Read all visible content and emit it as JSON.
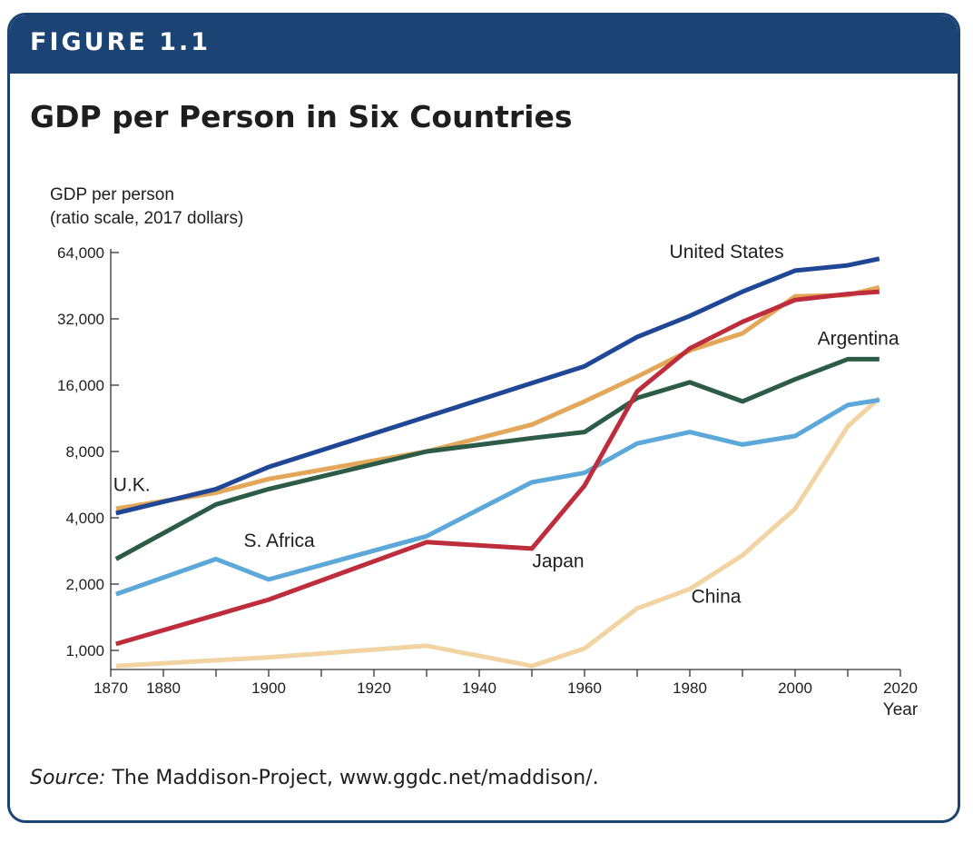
{
  "figure": {
    "label": "FIGURE 1.1",
    "title": "GDP per Person in Six Countries",
    "source_label": "Source:",
    "source_text": " The Maddison-Project, www.ggdc.net/maddison/."
  },
  "colors": {
    "header": "#1b4474",
    "United States": "#1f4796",
    "U.K.": "#e2a759",
    "Japan": "#be2d3c",
    "Argentina": "#2c5c45",
    "S. Africa": "#5ba8d9",
    "China": "#f2d3a2"
  },
  "chart_data": {
    "type": "line",
    "title": "GDP per Person in Six Countries",
    "ylabel_lines": [
      "GDP per person",
      "(ratio scale, 2017 dollars)"
    ],
    "xlabel": "Year",
    "y_scale": "log2",
    "ylim": [
      850,
      64000
    ],
    "xlim": [
      1870,
      2020
    ],
    "yticks": [
      1000,
      2000,
      4000,
      8000,
      16000,
      32000,
      64000
    ],
    "ytick_labels": [
      "1,000",
      "2,000",
      "4,000",
      "8,000",
      "16,000",
      "32,000",
      "64,000"
    ],
    "xticks": [
      1870,
      1880,
      1890,
      1900,
      1910,
      1920,
      1930,
      1940,
      1950,
      1960,
      1970,
      1980,
      1990,
      2000,
      2010,
      2020
    ],
    "xtick_labels": [
      "1870",
      "1880",
      "",
      "1900",
      "",
      "1920",
      "",
      "1940",
      "",
      "1960",
      "",
      "1980",
      "",
      "2000",
      "",
      "2020"
    ],
    "series": [
      {
        "name": "United States",
        "x": [
          1871,
          1890,
          1900,
          1930,
          1960,
          1970,
          1980,
          1990,
          2000,
          2010,
          2016
        ],
        "y": [
          4200,
          5400,
          6800,
          11500,
          19500,
          26500,
          33000,
          42500,
          53000,
          56000,
          60000
        ]
      },
      {
        "name": "U.K.",
        "x": [
          1871,
          1890,
          1900,
          1930,
          1950,
          1960,
          1970,
          1980,
          1990,
          2000,
          2010,
          2016
        ],
        "y": [
          4400,
          5200,
          6000,
          8000,
          10600,
          13500,
          17500,
          23000,
          27500,
          40500,
          41000,
          44500
        ]
      },
      {
        "name": "Argentina",
        "x": [
          1871,
          1890,
          1900,
          1930,
          1950,
          1960,
          1970,
          1980,
          1990,
          2000,
          2010,
          2016
        ],
        "y": [
          2600,
          4600,
          5400,
          8000,
          9200,
          9800,
          14000,
          16500,
          13500,
          17000,
          21000,
          21000
        ]
      },
      {
        "name": "S. Africa",
        "x": [
          1871,
          1890,
          1900,
          1930,
          1950,
          1960,
          1970,
          1980,
          1990,
          2000,
          2010,
          2016
        ],
        "y": [
          1800,
          2600,
          2100,
          3300,
          5800,
          6400,
          8700,
          9800,
          8600,
          9400,
          13000,
          13700
        ]
      },
      {
        "name": "Japan",
        "x": [
          1871,
          1900,
          1930,
          1950,
          1960,
          1970,
          1980,
          1990,
          2000,
          2010,
          2016
        ],
        "y": [
          1070,
          1700,
          3100,
          2900,
          5600,
          15000,
          23500,
          31000,
          39000,
          41500,
          42500
        ]
      },
      {
        "name": "China",
        "x": [
          1871,
          1900,
          1930,
          1950,
          1960,
          1970,
          1980,
          1990,
          2000,
          2010,
          2016
        ],
        "y": [
          850,
          930,
          1050,
          850,
          1020,
          1550,
          1900,
          2700,
          4400,
          10400,
          14000
        ]
      }
    ],
    "annotations": [
      {
        "text": "United States",
        "x": 1987,
        "y": 60500
      },
      {
        "text": "U.K.",
        "x": 1874,
        "y": 5300
      },
      {
        "text": "Argentina",
        "x": 2012,
        "y": 24400
      },
      {
        "text": "S. Africa",
        "x": 1902,
        "y": 2950
      },
      {
        "text": "Japan",
        "x": 1955,
        "y": 2380
      },
      {
        "text": "China",
        "x": 1985,
        "y": 1650
      }
    ]
  }
}
